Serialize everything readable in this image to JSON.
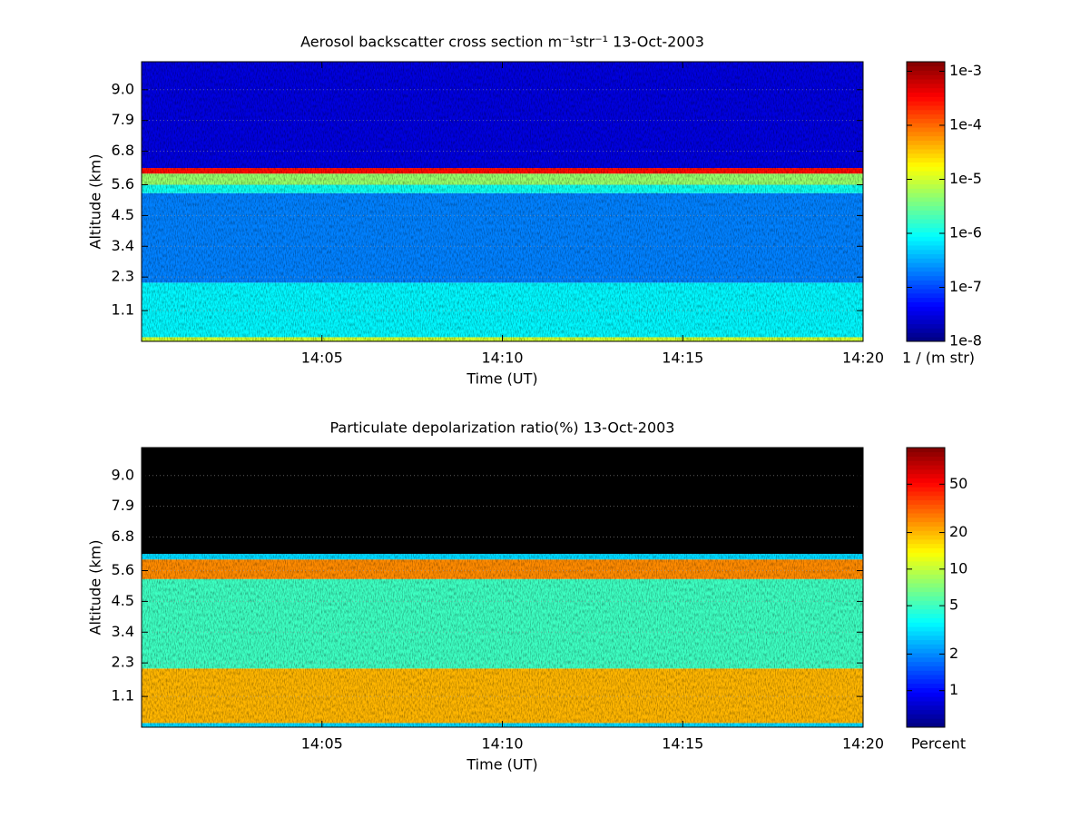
{
  "chart_data": [
    {
      "type": "heatmap",
      "title": "Aerosol backscatter cross section m⁻¹str⁻¹  13-Oct-2003",
      "xlabel": "Time (UT)",
      "ylabel": "Altitude (km)",
      "xlim": [
        840,
        860
      ],
      "xticks": [
        {
          "value": 845,
          "label": "14:05"
        },
        {
          "value": 850,
          "label": "14:10"
        },
        {
          "value": 855,
          "label": "14:15"
        },
        {
          "value": 860,
          "label": "14:20"
        }
      ],
      "ylim": [
        0,
        10
      ],
      "yticks": [
        1.1,
        2.3,
        3.4,
        4.5,
        5.6,
        6.8,
        7.9,
        {
          "value": 9,
          "label": "9.0"
        }
      ],
      "grid": true,
      "colormap": "jet",
      "color_scale": "log",
      "nan_color": "#000000",
      "clim": [
        1e-08,
        0.0015
      ],
      "cticks": [
        {
          "value": 1e-08,
          "label": "1e-8"
        },
        {
          "value": 1e-07,
          "label": "1e-7"
        },
        {
          "value": 1e-06,
          "label": "1e-6"
        },
        {
          "value": 1e-05,
          "label": "1e-5"
        },
        {
          "value": 0.0001,
          "label": "1e-4"
        },
        {
          "value": 0.001,
          "label": "1e-3"
        }
      ],
      "colorbar_label": "1 / (m str)",
      "layers": [
        {
          "bottom": 0,
          "top": 0.15,
          "value": 1e-05
        },
        {
          "bottom": 0.15,
          "top": 2.1,
          "value": 8e-07
        },
        {
          "bottom": 2.1,
          "top": 5.3,
          "value": 2e-07
        },
        {
          "bottom": 5.3,
          "top": 5.6,
          "value": 1e-06
        },
        {
          "bottom": 5.6,
          "top": 6.0,
          "value": 5e-06
        },
        {
          "bottom": 6.0,
          "top": 6.2,
          "value": 0.0003
        },
        {
          "bottom": 6.2,
          "top": 10,
          "value": 3e-08
        }
      ]
    },
    {
      "type": "heatmap",
      "title": "Particulate depolarization ratio(%)  13-Oct-2003",
      "xlabel": "Time (UT)",
      "ylabel": "Altitude (km)",
      "xlim": [
        840,
        860
      ],
      "xticks": [
        {
          "value": 845,
          "label": "14:05"
        },
        {
          "value": 850,
          "label": "14:10"
        },
        {
          "value": 855,
          "label": "14:15"
        },
        {
          "value": 860,
          "label": "14:20"
        }
      ],
      "ylim": [
        0,
        10
      ],
      "yticks": [
        1.1,
        2.3,
        3.4,
        4.5,
        5.6,
        6.8,
        7.9,
        {
          "value": 9,
          "label": "9.0"
        }
      ],
      "grid": true,
      "colormap": "jet",
      "color_scale": "log",
      "nan_color": "#000000",
      "clim": [
        0.5,
        100
      ],
      "cticks": [
        1,
        2,
        5,
        10,
        20,
        50
      ],
      "colorbar_label": "Percent",
      "layers": [
        {
          "bottom": 0,
          "top": 0.15,
          "value": 3
        },
        {
          "bottom": 0.15,
          "top": 2.1,
          "value": 20
        },
        {
          "bottom": 2.1,
          "top": 5.3,
          "value": 5
        },
        {
          "bottom": 5.3,
          "top": 6.0,
          "value": 25
        },
        {
          "bottom": 6.0,
          "top": 6.2,
          "value": 3
        },
        {
          "bottom": 6.2,
          "top": 10,
          "value": null
        }
      ]
    }
  ]
}
